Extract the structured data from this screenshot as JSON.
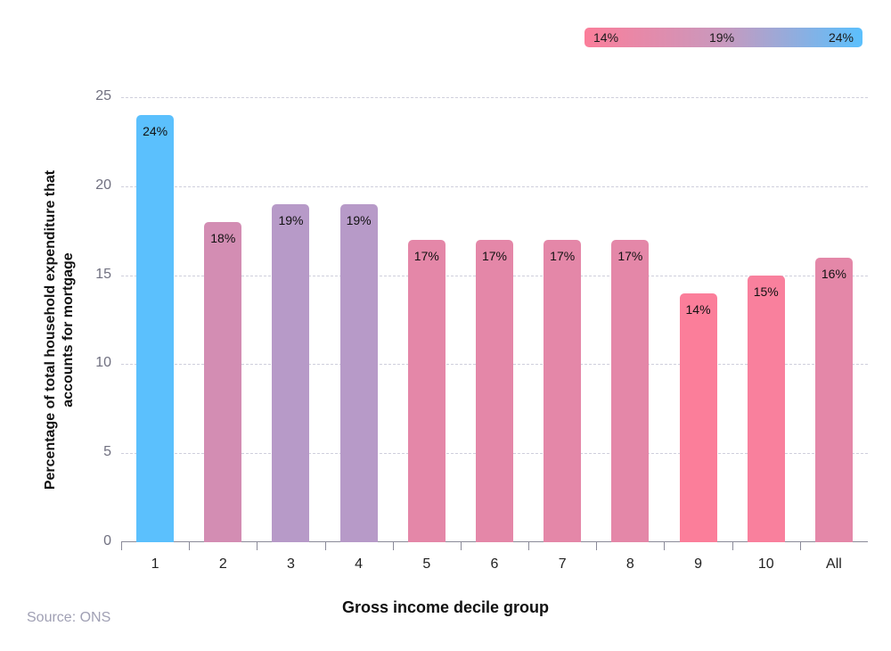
{
  "chart_data": {
    "type": "bar",
    "title": "",
    "xlabel": "Gross income decile group",
    "ylabel": "Percentage of total household expenditure that accounts for mortgage",
    "categories": [
      "1",
      "2",
      "3",
      "4",
      "5",
      "6",
      "7",
      "8",
      "9",
      "10",
      "All"
    ],
    "values": [
      24,
      18,
      19,
      19,
      17,
      17,
      17,
      17,
      14,
      15,
      16
    ],
    "value_labels": [
      "24%",
      "18%",
      "19%",
      "19%",
      "17%",
      "17%",
      "17%",
      "17%",
      "14%",
      "15%",
      "16%"
    ],
    "bar_colors": [
      "#5bc0fd",
      "#d38db3",
      "#b79ac8",
      "#b79ac8",
      "#e487a8",
      "#e487a8",
      "#e487a8",
      "#e487a8",
      "#fb7e9a",
      "#f9809d",
      "#e487a8"
    ],
    "ylim": [
      0,
      25
    ],
    "yticks": [
      "0",
      "5",
      "10",
      "15",
      "20",
      "25"
    ],
    "grid": true,
    "legend": {
      "type": "color-scale",
      "position": "top-right",
      "labels": [
        "14%",
        "19%",
        "24%"
      ],
      "colors": [
        "#fb7e9a",
        "#c899be",
        "#5bc0fd"
      ]
    }
  },
  "source": "Source: ONS"
}
